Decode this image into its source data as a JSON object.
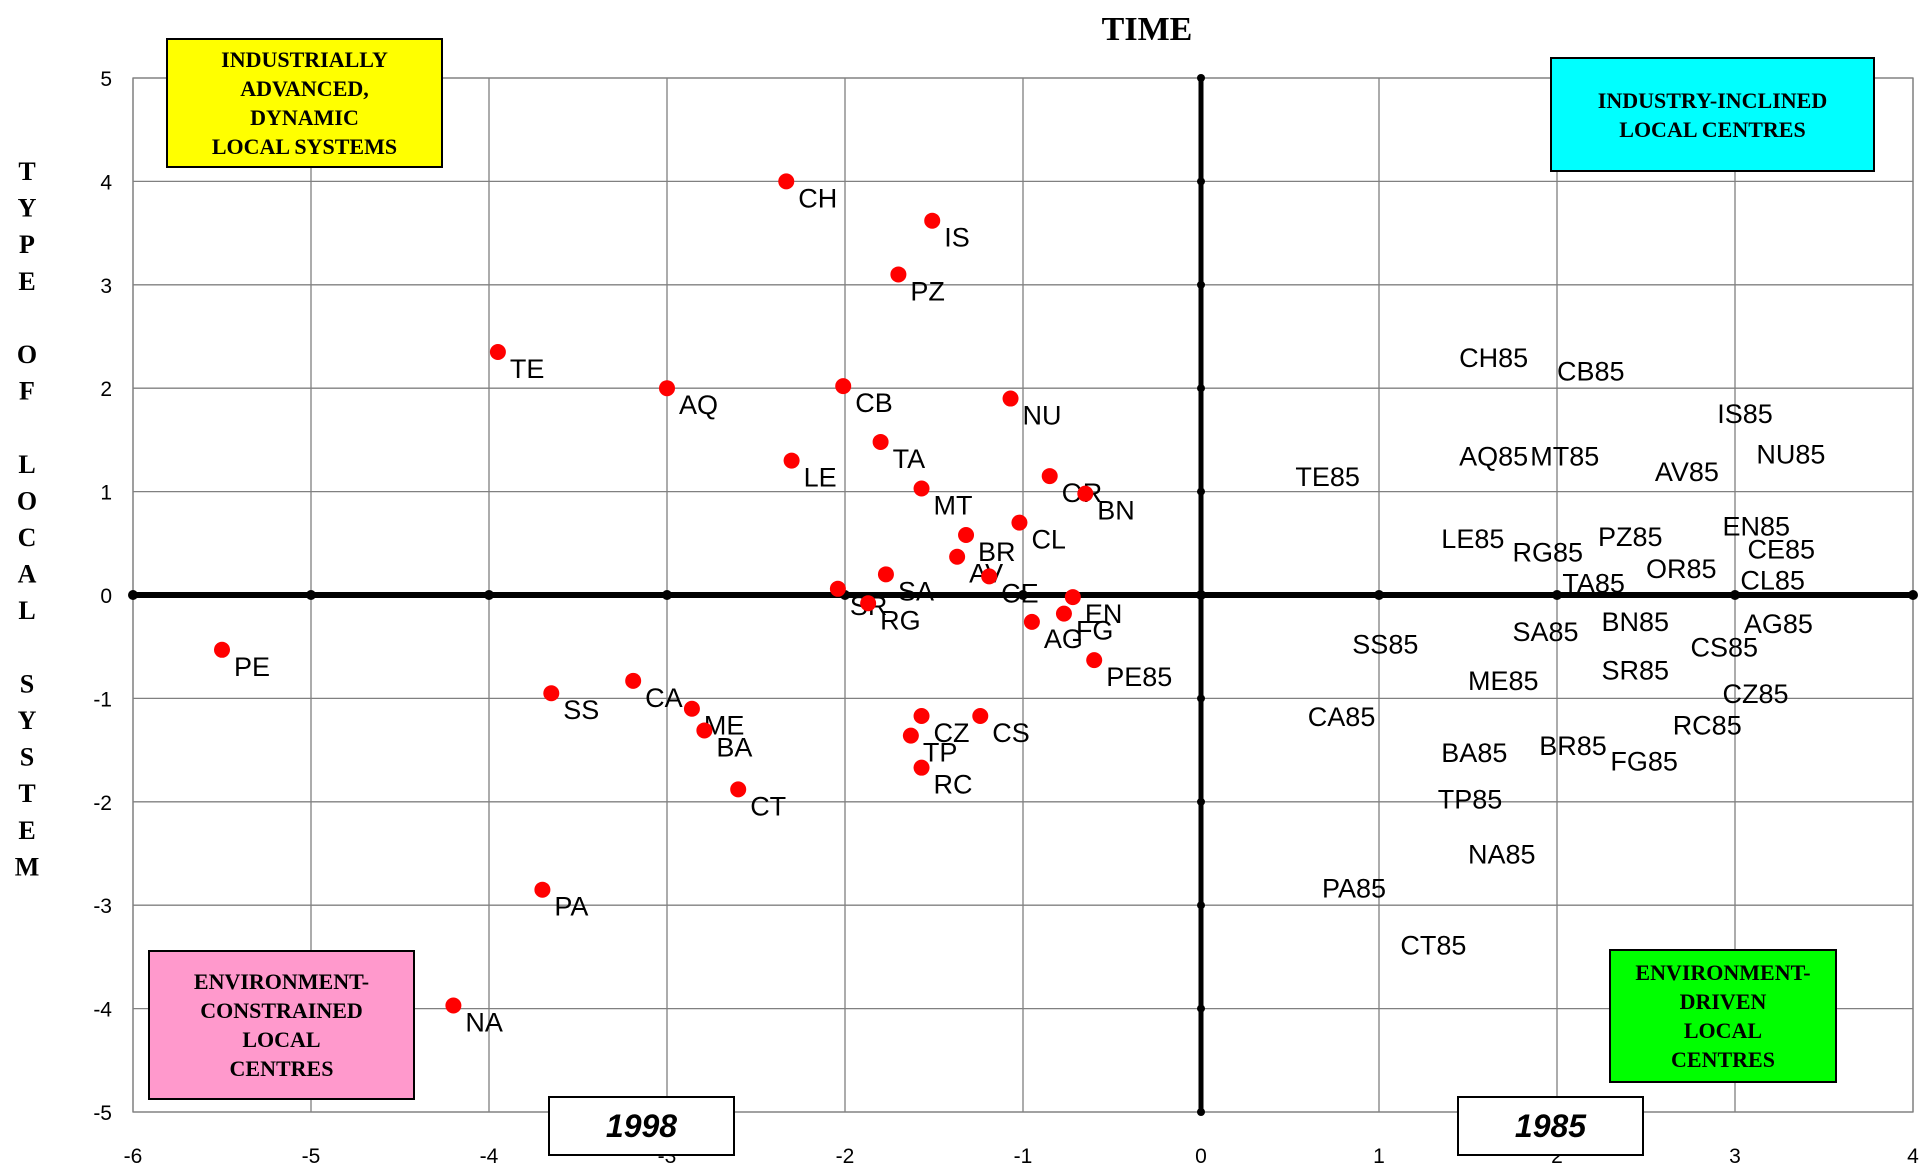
{
  "chart_data": {
    "type": "scatter",
    "title": "TIME",
    "ylabel": "TYPE OF LOCAL SYSTEM",
    "xlim": [
      -6,
      4
    ],
    "ylim": [
      -5,
      5
    ],
    "x_ticks": [
      "-6",
      "-5",
      "-4",
      "-3",
      "-2",
      "-1",
      "0",
      "1",
      "2",
      "3",
      "4"
    ],
    "y_ticks": [
      "5",
      "4",
      "3",
      "2",
      "1",
      "0",
      "-1",
      "-2",
      "-3",
      "-4",
      "-5"
    ],
    "grid": true,
    "marker_color": "#ff0000",
    "series": [
      {
        "marker": "red-dot",
        "points": [
          {
            "label": "CH",
            "x": -2.33,
            "y": 4.0
          },
          {
            "label": "IS",
            "x": -1.51,
            "y": 3.62
          },
          {
            "label": "PZ",
            "x": -1.7,
            "y": 3.1
          },
          {
            "label": "TE",
            "x": -3.95,
            "y": 2.35
          },
          {
            "label": "AQ",
            "x": -3.0,
            "y": 2.0
          },
          {
            "label": "CB",
            "x": -2.01,
            "y": 2.02
          },
          {
            "label": "NU",
            "x": -1.07,
            "y": 1.9
          },
          {
            "label": "LE",
            "x": -2.3,
            "y": 1.3
          },
          {
            "label": "TA",
            "x": -1.8,
            "y": 1.48
          },
          {
            "label": "MT",
            "x": -1.57,
            "y": 1.03
          },
          {
            "label": "OR",
            "x": -0.85,
            "y": 1.15
          },
          {
            "label": "BN",
            "x": -0.65,
            "y": 0.98
          },
          {
            "label": "CL",
            "x": -1.02,
            "y": 0.7
          },
          {
            "label": "BR",
            "x": -1.32,
            "y": 0.58
          },
          {
            "label": "SA",
            "x": -1.77,
            "y": 0.2
          },
          {
            "label": "AV",
            "x": -1.37,
            "y": 0.37
          },
          {
            "label": "CE",
            "x": -1.19,
            "y": 0.18
          },
          {
            "label": "SR",
            "x": -2.04,
            "y": 0.06
          },
          {
            "label": "RG",
            "x": -1.87,
            "y": -0.08
          },
          {
            "label": "EN",
            "x": -0.72,
            "y": -0.02
          },
          {
            "label": "FG",
            "x": -0.77,
            "y": -0.18
          },
          {
            "label": "AG",
            "x": -0.95,
            "y": -0.26
          },
          {
            "label": "PE85",
            "x": -0.6,
            "y": -0.63
          },
          {
            "label": "PE",
            "x": -5.5,
            "y": -0.53
          },
          {
            "label": "CA",
            "x": -3.19,
            "y": -0.83
          },
          {
            "label": "SS",
            "x": -3.65,
            "y": -0.95
          },
          {
            "label": "ME",
            "x": -2.86,
            "y": -1.1
          },
          {
            "label": "BA",
            "x": -2.79,
            "y": -1.31
          },
          {
            "label": "CZ",
            "x": -1.57,
            "y": -1.17
          },
          {
            "label": "CS",
            "x": -1.24,
            "y": -1.17
          },
          {
            "label": "TP",
            "x": -1.63,
            "y": -1.36
          },
          {
            "label": "RC",
            "x": -1.57,
            "y": -1.67
          },
          {
            "label": "CT",
            "x": -2.6,
            "y": -1.88
          },
          {
            "label": "PA",
            "x": -3.7,
            "y": -2.85
          },
          {
            "label": "NA",
            "x": -4.2,
            "y": -3.97
          }
        ]
      },
      {
        "marker": "none",
        "points": [
          {
            "label": "CH85",
            "x": 1.45,
            "y": 2.3
          },
          {
            "label": "CB85",
            "x": 2.0,
            "y": 2.17
          },
          {
            "label": "IS85",
            "x": 2.9,
            "y": 1.76
          },
          {
            "label": "AQ85",
            "x": 1.45,
            "y": 1.35
          },
          {
            "label": "MT85",
            "x": 1.85,
            "y": 1.35
          },
          {
            "label": "NU85",
            "x": 3.12,
            "y": 1.37
          },
          {
            "label": "AV85",
            "x": 2.55,
            "y": 1.2
          },
          {
            "label": "TE85",
            "x": 0.53,
            "y": 1.15
          },
          {
            "label": "LE85",
            "x": 1.35,
            "y": 0.55
          },
          {
            "label": "RG85",
            "x": 1.75,
            "y": 0.42
          },
          {
            "label": "PZ85",
            "x": 2.23,
            "y": 0.57
          },
          {
            "label": "EN85",
            "x": 2.93,
            "y": 0.67
          },
          {
            "label": "CE85",
            "x": 3.07,
            "y": 0.45
          },
          {
            "label": "OR85",
            "x": 2.5,
            "y": 0.26
          },
          {
            "label": "TA85",
            "x": 2.03,
            "y": 0.12
          },
          {
            "label": "CL85",
            "x": 3.03,
            "y": 0.15
          },
          {
            "label": "BN85",
            "x": 2.25,
            "y": -0.25
          },
          {
            "label": "AG85",
            "x": 3.05,
            "y": -0.27
          },
          {
            "label": "SA85",
            "x": 1.75,
            "y": -0.35
          },
          {
            "label": "CS85",
            "x": 2.75,
            "y": -0.5
          },
          {
            "label": "SS85",
            "x": 0.85,
            "y": -0.47
          },
          {
            "label": "SR85",
            "x": 2.25,
            "y": -0.72
          },
          {
            "label": "ME85",
            "x": 1.5,
            "y": -0.82
          },
          {
            "label": "CZ85",
            "x": 2.93,
            "y": -0.95
          },
          {
            "label": "CA85",
            "x": 0.6,
            "y": -1.17
          },
          {
            "label": "RC85",
            "x": 2.65,
            "y": -1.25
          },
          {
            "label": "BR85",
            "x": 1.9,
            "y": -1.45
          },
          {
            "label": "BA85",
            "x": 1.35,
            "y": -1.52
          },
          {
            "label": "FG85",
            "x": 2.3,
            "y": -1.6
          },
          {
            "label": "TP85",
            "x": 1.33,
            "y": -1.97
          },
          {
            "label": "NA85",
            "x": 1.5,
            "y": -2.5
          },
          {
            "label": "PA85",
            "x": 0.68,
            "y": -2.83
          },
          {
            "label": "CT85",
            "x": 1.12,
            "y": -3.38
          }
        ]
      }
    ],
    "quadrant_labels": [
      {
        "id": "top-left",
        "lines": [
          "INDUSTRIALLY",
          "ADVANCED,",
          "DYNAMIC",
          "LOCAL SYSTEMS"
        ],
        "color": "#ffff00"
      },
      {
        "id": "top-right",
        "lines": [
          "INDUSTRY-INCLINED",
          "LOCAL CENTRES"
        ],
        "color": "#00ffff"
      },
      {
        "id": "bottom-left",
        "lines": [
          "ENVIRONMENT-",
          "CONSTRAINED",
          "LOCAL",
          "CENTRES"
        ],
        "color": "#ff99cc"
      },
      {
        "id": "bottom-right",
        "lines": [
          "ENVIRONMENT-",
          "DRIVEN",
          "LOCAL",
          "CENTRES"
        ],
        "color": "#00ff00"
      }
    ],
    "year_labels": [
      "1998",
      "1985"
    ]
  }
}
